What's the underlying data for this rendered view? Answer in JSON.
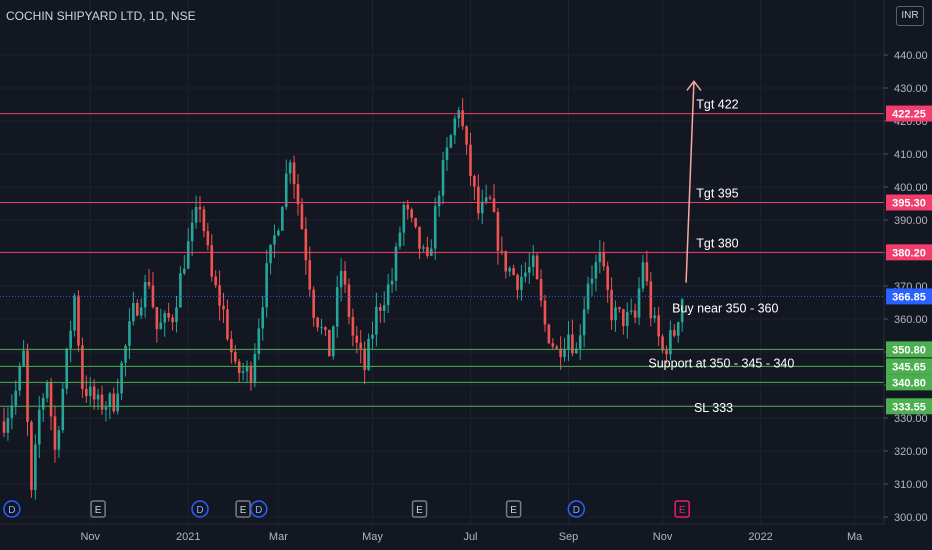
{
  "header": {
    "title": "COCHIN SHIPYARD LTD, 1D, NSE",
    "currency": "INR"
  },
  "colors": {
    "background": "#131722",
    "up": "#26a69a",
    "down": "#ef5350",
    "resistance": "#f23d6d",
    "support": "#4caf50",
    "last_price": "#2962ff",
    "axis_text": "#b2b5be",
    "event_earnings": "#787b86",
    "event_dividend": "#2962ff",
    "arrow": "#f7a9a0"
  },
  "chart_data": {
    "type": "candlestick",
    "title": "COCHIN SHIPYARD LTD, 1D, NSE",
    "ylim": [
      298,
      445
    ],
    "y_ticks": [
      300,
      310,
      320,
      330,
      340,
      350,
      360,
      370,
      380,
      390,
      400,
      410,
      420,
      430,
      440
    ],
    "x_ticks": [
      {
        "label": "Nov",
        "bar": 22
      },
      {
        "label": "2021",
        "bar": 47
      },
      {
        "label": "Mar",
        "bar": 70
      },
      {
        "label": "May",
        "bar": 94
      },
      {
        "label": "Jul",
        "bar": 119
      },
      {
        "label": "Sep",
        "bar": 144
      },
      {
        "label": "Nov",
        "bar": 168
      },
      {
        "label": "2022",
        "bar": 193
      },
      {
        "label": "Ma",
        "bar": 217
      }
    ],
    "series_close_path": [
      {
        "bar": 0,
        "price": 329
      },
      {
        "bar": 3,
        "price": 338
      },
      {
        "bar": 5,
        "price": 349
      },
      {
        "bar": 7,
        "price": 306
      },
      {
        "bar": 9,
        "price": 332
      },
      {
        "bar": 11,
        "price": 342
      },
      {
        "bar": 13,
        "price": 320
      },
      {
        "bar": 18,
        "price": 367
      },
      {
        "bar": 20,
        "price": 340
      },
      {
        "bar": 24,
        "price": 334
      },
      {
        "bar": 28,
        "price": 335
      },
      {
        "bar": 33,
        "price": 362
      },
      {
        "bar": 37,
        "price": 372
      },
      {
        "bar": 39,
        "price": 357
      },
      {
        "bar": 43,
        "price": 361
      },
      {
        "bar": 46,
        "price": 378
      },
      {
        "bar": 50,
        "price": 395
      },
      {
        "bar": 53,
        "price": 372
      },
      {
        "bar": 56,
        "price": 362
      },
      {
        "bar": 59,
        "price": 344
      },
      {
        "bar": 63,
        "price": 344
      },
      {
        "bar": 67,
        "price": 374
      },
      {
        "bar": 70,
        "price": 390
      },
      {
        "bar": 73,
        "price": 410
      },
      {
        "bar": 76,
        "price": 388
      },
      {
        "bar": 79,
        "price": 363
      },
      {
        "bar": 83,
        "price": 350
      },
      {
        "bar": 86,
        "price": 375
      },
      {
        "bar": 89,
        "price": 355
      },
      {
        "bar": 92,
        "price": 345
      },
      {
        "bar": 95,
        "price": 362
      },
      {
        "bar": 99,
        "price": 372
      },
      {
        "bar": 102,
        "price": 394
      },
      {
        "bar": 105,
        "price": 385
      },
      {
        "bar": 108,
        "price": 376
      },
      {
        "bar": 111,
        "price": 400
      },
      {
        "bar": 114,
        "price": 415
      },
      {
        "bar": 116,
        "price": 425
      },
      {
        "bar": 118,
        "price": 410
      },
      {
        "bar": 121,
        "price": 392
      },
      {
        "bar": 124,
        "price": 395
      },
      {
        "bar": 127,
        "price": 378
      },
      {
        "bar": 131,
        "price": 372
      },
      {
        "bar": 135,
        "price": 376
      },
      {
        "bar": 138,
        "price": 358
      },
      {
        "bar": 141,
        "price": 350
      },
      {
        "bar": 144,
        "price": 356
      },
      {
        "bar": 146,
        "price": 350
      },
      {
        "bar": 149,
        "price": 372
      },
      {
        "bar": 152,
        "price": 378
      },
      {
        "bar": 155,
        "price": 362
      },
      {
        "bar": 158,
        "price": 360
      },
      {
        "bar": 161,
        "price": 360
      },
      {
        "bar": 163,
        "price": 378
      },
      {
        "bar": 165,
        "price": 362
      },
      {
        "bar": 168,
        "price": 350
      },
      {
        "bar": 171,
        "price": 356
      },
      {
        "bar": 173,
        "price": 366.85
      }
    ],
    "horizontal_levels": [
      {
        "price": 422.25,
        "label": "422.25",
        "kind": "resistance"
      },
      {
        "price": 395.3,
        "label": "395.30",
        "kind": "resistance"
      },
      {
        "price": 380.2,
        "label": "380.20",
        "kind": "resistance"
      },
      {
        "price": 350.8,
        "label": "350.80",
        "kind": "support"
      },
      {
        "price": 345.65,
        "label": "345.65",
        "kind": "support"
      },
      {
        "price": 340.8,
        "label": "340.80",
        "kind": "support"
      },
      {
        "price": 333.55,
        "label": "333.55",
        "kind": "support"
      }
    ],
    "last_price": {
      "price": 366.85,
      "label": "366.85"
    },
    "annotations": [
      {
        "text": "Tgt 422",
        "price": 422.25,
        "bar": 182
      },
      {
        "text": "Tgt 395",
        "price": 395.3,
        "bar": 182
      },
      {
        "text": "Tgt 380",
        "price": 380.2,
        "bar": 182
      },
      {
        "text": "Buy near 350 - 360",
        "price": 360.5,
        "bar": 184
      },
      {
        "text": "Support at 350 - 345 - 340",
        "price": 343.8,
        "bar": 183
      },
      {
        "text": "SL 333",
        "price": 330.3,
        "bar": 181
      }
    ],
    "arrow": {
      "from": {
        "bar": 174,
        "price": 371
      },
      "to": {
        "bar": 176,
        "price": 432
      }
    },
    "events": [
      {
        "type": "dividend",
        "label": "D",
        "bar": 2
      },
      {
        "type": "earnings",
        "label": "E",
        "bar": 24
      },
      {
        "type": "dividend",
        "label": "D",
        "bar": 50
      },
      {
        "type": "earnings",
        "label": "E",
        "bar": 61
      },
      {
        "type": "dividend",
        "label": "D",
        "bar": 65
      },
      {
        "type": "earnings",
        "label": "E",
        "bar": 106
      },
      {
        "type": "earnings",
        "label": "E",
        "bar": 130
      },
      {
        "type": "dividend",
        "label": "D",
        "bar": 146
      },
      {
        "type": "earnings_upcoming",
        "label": "E",
        "bar": 173
      }
    ]
  }
}
